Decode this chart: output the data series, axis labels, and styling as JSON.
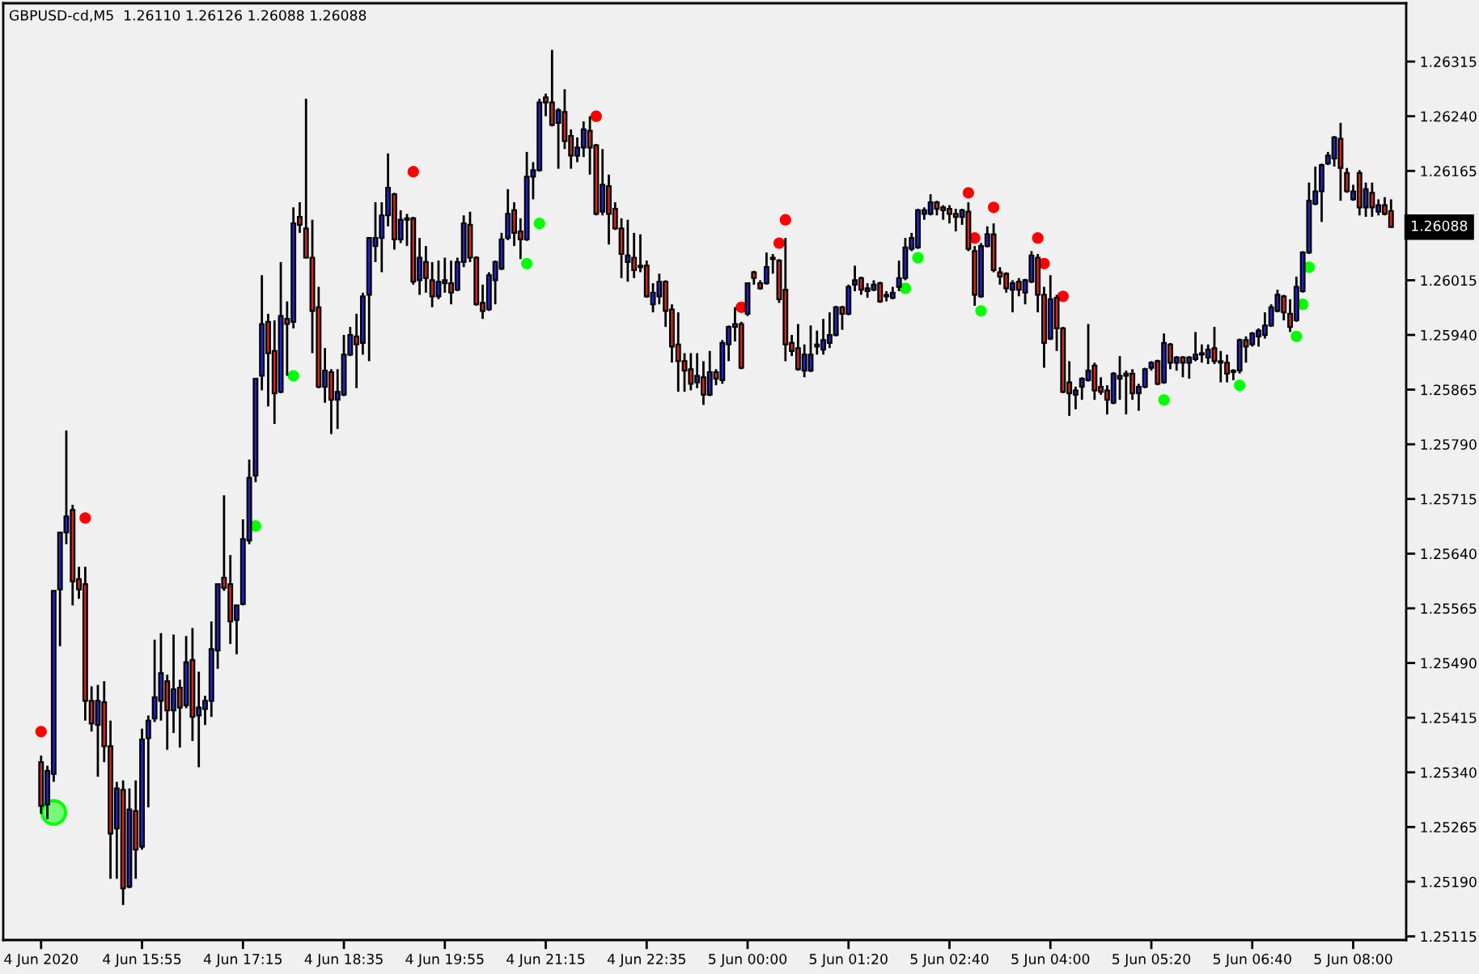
{
  "chart_data": {
    "type": "candlestick",
    "title": "GBPUSD-cd,M5  1.26110 1.26126 1.26088 1.26088",
    "categories": [
      "4 Jun 2020",
      null,
      null,
      null,
      null,
      null,
      null,
      null,
      null,
      null,
      null,
      null,
      null,
      null,
      null,
      null,
      "4 Jun 15:55",
      null,
      null,
      null,
      null,
      null,
      null,
      null,
      null,
      null,
      null,
      null,
      null,
      null,
      null,
      null,
      "4 Jun 17:15",
      null,
      null,
      null,
      null,
      null,
      null,
      null,
      null,
      null,
      null,
      null,
      null,
      null,
      null,
      null,
      "4 Jun 18:35",
      null,
      null,
      null,
      null,
      null,
      null,
      null,
      null,
      null,
      null,
      null,
      null,
      null,
      null,
      null,
      "4 Jun 19:55",
      null,
      null,
      null,
      null,
      null,
      null,
      null,
      null,
      null,
      null,
      null,
      null,
      null,
      null,
      null,
      "4 Jun 21:15",
      null,
      null,
      null,
      null,
      null,
      null,
      null,
      null,
      null,
      null,
      null,
      null,
      null,
      null,
      null,
      "4 Jun 22:35",
      null,
      null,
      null,
      null,
      null,
      null,
      null,
      null,
      null,
      null,
      null,
      null,
      null,
      null,
      null,
      "5 Jun 00:00",
      null,
      null,
      null,
      null,
      null,
      null,
      null,
      null,
      null,
      null,
      null,
      null,
      null,
      null,
      null,
      "5 Jun 01:20",
      null,
      null,
      null,
      null,
      null,
      null,
      null,
      null,
      null,
      null,
      null,
      null,
      null,
      null,
      null,
      "5 Jun 02:40",
      null,
      null,
      null,
      null,
      null,
      null,
      null,
      null,
      null,
      null,
      null,
      null,
      null,
      null,
      null,
      "5 Jun 04:00",
      null,
      null,
      null,
      null,
      null,
      null,
      null,
      null,
      null,
      null,
      null,
      null,
      null,
      null,
      null,
      "5 Jun 05:20",
      null,
      null,
      null,
      null,
      null,
      null,
      null,
      null,
      null,
      null,
      null,
      null,
      null,
      null,
      null,
      "5 Jun 06:40",
      null,
      null,
      null,
      null,
      null,
      null,
      null,
      null,
      null,
      null,
      null,
      null,
      null,
      null,
      null,
      "5 Jun 08:00",
      null,
      null,
      null,
      null,
      null,
      null
    ],
    "ohlc": [
      [
        1.25354,
        1.25363,
        1.25283,
        1.25294
      ],
      [
        1.25296,
        1.25349,
        1.25276,
        1.25342
      ],
      [
        1.25338,
        1.25589,
        1.25327,
        1.25589
      ],
      [
        1.25591,
        1.25669,
        1.25513,
        1.25669
      ],
      [
        1.25669,
        1.25809,
        1.25653,
        1.25691
      ],
      [
        1.257,
        1.25707,
        1.25569,
        1.25602
      ],
      [
        1.25605,
        1.25622,
        1.25578,
        1.25591
      ],
      [
        1.25598,
        1.25622,
        1.25411,
        1.25438
      ],
      [
        1.25438,
        1.25458,
        1.25396,
        1.25407
      ],
      [
        1.25405,
        1.2546,
        1.25334,
        1.25438
      ],
      [
        1.25436,
        1.25465,
        1.25354,
        1.25376
      ],
      [
        1.25376,
        1.25411,
        1.25194,
        1.25256
      ],
      [
        1.25263,
        1.25327,
        1.25194,
        1.25318
      ],
      [
        1.25316,
        1.25329,
        1.25158,
        1.25181
      ],
      [
        1.25183,
        1.25318,
        1.25181,
        1.25289
      ],
      [
        1.25287,
        1.25329,
        1.25194,
        1.25234
      ],
      [
        1.25238,
        1.254,
        1.25234,
        1.25385
      ],
      [
        1.25387,
        1.25418,
        1.25292,
        1.25411
      ],
      [
        1.25414,
        1.25522,
        1.25409,
        1.25443
      ],
      [
        1.25438,
        1.25531,
        1.25411,
        1.25476
      ],
      [
        1.25465,
        1.25474,
        1.25371,
        1.25425
      ],
      [
        1.25425,
        1.25529,
        1.25394,
        1.25454
      ],
      [
        1.25456,
        1.25467,
        1.25374,
        1.25429
      ],
      [
        1.25432,
        1.25527,
        1.25428,
        1.25491
      ],
      [
        1.25494,
        1.25538,
        1.25383,
        1.25416
      ],
      [
        1.25418,
        1.25478,
        1.25347,
        1.25429
      ],
      [
        1.25427,
        1.25445,
        1.25405,
        1.25438
      ],
      [
        1.25438,
        1.25547,
        1.25416,
        1.25509
      ],
      [
        1.25507,
        1.25598,
        1.25482,
        1.25598
      ],
      [
        1.25607,
        1.2572,
        1.25589,
        1.25593
      ],
      [
        1.25598,
        1.25638,
        1.25516,
        1.25547
      ],
      [
        1.25549,
        1.25569,
        1.25502,
        1.25569
      ],
      [
        1.25571,
        1.25687,
        1.25569,
        1.2566
      ],
      [
        1.25658,
        1.25769,
        1.25653,
        1.25744
      ],
      [
        1.25747,
        1.2588,
        1.25738,
        1.2588
      ],
      [
        1.25884,
        1.26022,
        1.25864,
        1.25955
      ],
      [
        1.25958,
        1.25969,
        1.25842,
        1.25915
      ],
      [
        1.25918,
        1.2596,
        1.25818,
        1.2586
      ],
      [
        1.25862,
        1.2604,
        1.2586,
        1.25966
      ],
      [
        1.25962,
        1.25986,
        1.25884,
        1.25955
      ],
      [
        1.25958,
        1.26115,
        1.25949,
        1.26093
      ],
      [
        1.26102,
        1.26122,
        1.2608,
        1.26091
      ],
      [
        1.26086,
        1.26264,
        1.26045,
        1.26046
      ],
      [
        1.26046,
        1.26098,
        1.25915,
        1.25973
      ],
      [
        1.25978,
        1.26006,
        1.25867,
        1.25869
      ],
      [
        1.25869,
        1.25922,
        1.25847,
        1.25891
      ],
      [
        1.25889,
        1.25893,
        1.25804,
        1.25851
      ],
      [
        1.25851,
        1.25893,
        1.25811,
        1.25862
      ],
      [
        1.25858,
        1.2594,
        1.25856,
        1.25913
      ],
      [
        1.25913,
        1.25951,
        1.25911,
        1.2594
      ],
      [
        1.25938,
        1.25969,
        1.25867,
        1.25927
      ],
      [
        1.25929,
        1.25998,
        1.25913,
        1.25993
      ],
      [
        1.25995,
        1.26073,
        1.25904,
        1.26073
      ],
      [
        1.26062,
        1.26122,
        1.2604,
        1.26073
      ],
      [
        1.26073,
        1.26122,
        1.26026,
        1.26104
      ],
      [
        1.26104,
        1.26189,
        1.26089,
        1.26142
      ],
      [
        1.26133,
        1.26135,
        1.26057,
        1.26071
      ],
      [
        1.26071,
        1.26111,
        1.26066,
        1.26098
      ],
      [
        1.261,
        1.26106,
        1.26062,
        1.26098
      ],
      [
        1.261,
        1.26102,
        1.26009,
        1.26013
      ],
      [
        1.26015,
        1.26073,
        1.25995,
        1.26046
      ],
      [
        1.2604,
        1.26062,
        1.25998,
        1.26018
      ],
      [
        1.26015,
        1.2604,
        1.25978,
        1.25993
      ],
      [
        1.25993,
        1.26042,
        1.25989,
        1.26013
      ],
      [
        1.26011,
        1.26046,
        1.25998,
        1.26015
      ],
      [
        1.26011,
        1.26042,
        1.25982,
        1.25998
      ],
      [
        1.26002,
        1.26046,
        1.26,
        1.2604
      ],
      [
        1.2604,
        1.26104,
        1.26033,
        1.26093
      ],
      [
        1.26091,
        1.26109,
        1.2604,
        1.26046
      ],
      [
        1.26046,
        1.26048,
        1.2598,
        1.25982
      ],
      [
        1.25984,
        1.26009,
        1.25962,
        1.25973
      ],
      [
        1.25975,
        1.26026,
        1.25973,
        1.26022
      ],
      [
        1.26015,
        1.26042,
        1.25982,
        1.2604
      ],
      [
        1.26031,
        1.2608,
        1.26029,
        1.26071
      ],
      [
        1.26073,
        1.2614,
        1.2607,
        1.26106
      ],
      [
        1.26111,
        1.26122,
        1.26062,
        1.2608
      ],
      [
        1.26082,
        1.261,
        1.26044,
        1.26071
      ],
      [
        1.26071,
        1.26191,
        1.26069,
        1.26157
      ],
      [
        1.26157,
        1.26177,
        1.26126,
        1.26166
      ],
      [
        1.26166,
        1.26264,
        1.26164,
        1.26259
      ],
      [
        1.26266,
        1.26271,
        1.2624,
        1.26259
      ],
      [
        1.26259,
        1.26331,
        1.26226,
        1.26228
      ],
      [
        1.26231,
        1.26251,
        1.26168,
        1.26248
      ],
      [
        1.26246,
        1.26277,
        1.26195,
        1.26206
      ],
      [
        1.26213,
        1.26222,
        1.26168,
        1.26186
      ],
      [
        1.26186,
        1.26211,
        1.26177,
        1.26197
      ],
      [
        1.26197,
        1.26233,
        1.26184,
        1.26222
      ],
      [
        1.2622,
        1.2624,
        1.2616,
        1.26197
      ],
      [
        1.262,
        1.26202,
        1.26104,
        1.26106
      ],
      [
        1.26109,
        1.26195,
        1.26104,
        1.26146
      ],
      [
        1.26144,
        1.2616,
        1.26064,
        1.26106
      ],
      [
        1.26113,
        1.26122,
        1.26084,
        1.26086
      ],
      [
        1.26086,
        1.261,
        1.26018,
        1.26051
      ],
      [
        1.2604,
        1.26098,
        1.26013,
        1.26049
      ],
      [
        1.26046,
        1.2608,
        1.26018,
        1.26029
      ],
      [
        1.26035,
        1.26078,
        1.26026,
        1.26033
      ],
      [
        1.26035,
        1.26042,
        1.25991,
        1.25993
      ],
      [
        1.25982,
        1.26011,
        1.25971,
        1.25998
      ],
      [
        1.25993,
        1.26024,
        1.25982,
        1.26013
      ],
      [
        1.26013,
        1.26015,
        1.25951,
        1.25973
      ],
      [
        1.25975,
        1.25982,
        1.25902,
        1.25924
      ],
      [
        1.25927,
        1.25971,
        1.25862,
        1.25904
      ],
      [
        1.25904,
        1.25915,
        1.25862,
        1.25891
      ],
      [
        1.25893,
        1.25915,
        1.25864,
        1.25873
      ],
      [
        1.25875,
        1.25915,
        1.25867,
        1.25884
      ],
      [
        1.25882,
        1.25904,
        1.25844,
        1.25858
      ],
      [
        1.25858,
        1.25918,
        1.25856,
        1.25889
      ],
      [
        1.25889,
        1.25893,
        1.25871,
        1.2588
      ],
      [
        1.25878,
        1.25933,
        1.25873,
        1.25929
      ],
      [
        1.25927,
        1.25953,
        1.25904,
        1.25951
      ],
      [
        1.25955,
        1.25978,
        1.25931,
        1.25951
      ],
      [
        1.25955,
        1.25958,
        1.25893,
        1.25895
      ],
      [
        1.25969,
        1.26011,
        1.25966,
        1.26011
      ],
      [
        1.26026,
        1.26028,
        1.26009,
        1.26018
      ],
      [
        1.26011,
        1.26015,
        1.26002,
        1.26004
      ],
      [
        1.26011,
        1.26053,
        1.26009,
        1.26033
      ],
      [
        1.26044,
        1.26051,
        1.26024,
        1.26046
      ],
      [
        1.26042,
        1.26044,
        1.25984,
        1.25989
      ],
      [
        1.26002,
        1.26073,
        1.25904,
        1.25927
      ],
      [
        1.25929,
        1.2594,
        1.25911,
        1.25918
      ],
      [
        1.25922,
        1.25955,
        1.25891,
        1.25893
      ],
      [
        1.25891,
        1.25927,
        1.25882,
        1.25913
      ],
      [
        1.25891,
        1.25953,
        1.25889,
        1.25913
      ],
      [
        1.25924,
        1.25946,
        1.25913,
        1.25927
      ],
      [
        1.2592,
        1.25962,
        1.25913,
        1.25933
      ],
      [
        1.25929,
        1.25971,
        1.25922,
        1.2594
      ],
      [
        1.2594,
        1.2598,
        1.25938,
        1.25978
      ],
      [
        1.25978,
        1.2598,
        1.25947,
        1.25969
      ],
      [
        1.25969,
        1.26009,
        1.25967,
        1.26006
      ],
      [
        1.26009,
        1.26035,
        1.26,
        1.26015
      ],
      [
        1.26018,
        1.2602,
        1.25995,
        1.26002
      ],
      [
        1.26,
        1.26011,
        1.25991,
        1.26004
      ],
      [
        1.26002,
        1.26015,
        1.26,
        1.26009
      ],
      [
        1.26011,
        1.26013,
        1.25984,
        1.25986
      ],
      [
        1.25995,
        1.26,
        1.25986,
        1.25993
      ],
      [
        1.25991,
        1.26006,
        1.25989,
        1.25998
      ],
      [
        1.26006,
        1.26042,
        1.26,
        1.26018
      ],
      [
        1.26018,
        1.26073,
        1.26015,
        1.2606
      ],
      [
        1.26058,
        1.2608,
        1.26055,
        1.26073
      ],
      [
        1.2606,
        1.26113,
        1.26058,
        1.26111
      ],
      [
        1.26106,
        1.26115,
        1.26098,
        1.26111
      ],
      [
        1.26106,
        1.26133,
        1.26104,
        1.26122
      ],
      [
        1.26122,
        1.26124,
        1.26104,
        1.26113
      ],
      [
        1.26115,
        1.26118,
        1.26098,
        1.26111
      ],
      [
        1.26113,
        1.26118,
        1.26093,
        1.26106
      ],
      [
        1.26106,
        1.26113,
        1.26082,
        1.26102
      ],
      [
        1.26102,
        1.26113,
        1.26091,
        1.26111
      ],
      [
        1.26109,
        1.26122,
        1.26055,
        1.26058
      ],
      [
        1.26055,
        1.26062,
        1.2598,
        1.25995
      ],
      [
        1.25993,
        1.26066,
        1.25991,
        1.26062
      ],
      [
        1.26062,
        1.26089,
        1.2606,
        1.26078
      ],
      [
        1.26078,
        1.26093,
        1.26026,
        1.26029
      ],
      [
        1.26026,
        1.26033,
        1.26009,
        1.2602
      ],
      [
        1.26024,
        1.26026,
        1.25998,
        1.26004
      ],
      [
        1.26002,
        1.26015,
        1.25971,
        1.26011
      ],
      [
        1.26013,
        1.26018,
        1.25993,
        1.26002
      ],
      [
        1.25998,
        1.26017,
        1.25982,
        1.26015
      ],
      [
        1.26013,
        1.26055,
        1.26011,
        1.26049
      ],
      [
        1.26046,
        1.26051,
        1.25971,
        1.25995
      ],
      [
        1.25995,
        1.26006,
        1.25895,
        1.25929
      ],
      [
        1.25935,
        1.26022,
        1.25933,
        1.25989
      ],
      [
        1.25991,
        1.25995,
        1.25918,
        1.25949
      ],
      [
        1.25949,
        1.25951,
        1.2586,
        1.25862
      ],
      [
        1.25875,
        1.25904,
        1.25829,
        1.2586
      ],
      [
        1.25858,
        1.25869,
        1.25838,
        1.25864
      ],
      [
        1.25869,
        1.25882,
        1.25851,
        1.2588
      ],
      [
        1.25878,
        1.25955,
        1.25876,
        1.25891
      ],
      [
        1.25898,
        1.25902,
        1.25851,
        1.25864
      ],
      [
        1.25869,
        1.25882,
        1.25858,
        1.25862
      ],
      [
        1.25864,
        1.25871,
        1.25831,
        1.25851
      ],
      [
        1.25847,
        1.25889,
        1.25845,
        1.25887
      ],
      [
        1.2588,
        1.25911,
        1.25851,
        1.25884
      ],
      [
        1.25887,
        1.25891,
        1.25831,
        1.25884
      ],
      [
        1.25887,
        1.25893,
        1.25851,
        1.2586
      ],
      [
        1.2586,
        1.25873,
        1.25836,
        1.25869
      ],
      [
        1.25869,
        1.25895,
        1.25867,
        1.25893
      ],
      [
        1.25895,
        1.25904,
        1.25891,
        1.25902
      ],
      [
        1.25904,
        1.25906,
        1.25871,
        1.25873
      ],
      [
        1.25875,
        1.25942,
        1.25873,
        1.25929
      ],
      [
        1.25927,
        1.25929,
        1.25893,
        1.25902
      ],
      [
        1.25902,
        1.25911,
        1.25891,
        1.25909
      ],
      [
        1.25909,
        1.25911,
        1.25882,
        1.25902
      ],
      [
        1.25902,
        1.25911,
        1.2588,
        1.25909
      ],
      [
        1.25907,
        1.25944,
        1.25904,
        1.25913
      ],
      [
        1.25913,
        1.25927,
        1.25902,
        1.25915
      ],
      [
        1.25909,
        1.25927,
        1.259,
        1.2592
      ],
      [
        1.25922,
        1.25951,
        1.259,
        1.25904
      ],
      [
        1.25904,
        1.25918,
        1.25875,
        1.25902
      ],
      [
        1.25902,
        1.25913,
        1.25875,
        1.25887
      ],
      [
        1.25891,
        1.25893,
        1.25878,
        1.25889
      ],
      [
        1.25891,
        1.25935,
        1.25887,
        1.25933
      ],
      [
        1.25933,
        1.25938,
        1.25902,
        1.25924
      ],
      [
        1.25927,
        1.25944,
        1.25924,
        1.25942
      ],
      [
        1.25938,
        1.25949,
        1.25924,
        1.25946
      ],
      [
        1.2594,
        1.25971,
        1.25935,
        1.25953
      ],
      [
        1.25953,
        1.25982,
        1.25951,
        1.25978
      ],
      [
        1.25973,
        1.26002,
        1.25971,
        1.25995
      ],
      [
        1.25993,
        1.25995,
        1.2596,
        1.25971
      ],
      [
        1.25969,
        1.25989,
        1.25944,
        1.25951
      ],
      [
        1.2596,
        1.2602,
        1.25958,
        1.26006
      ],
      [
        1.26,
        1.26055,
        1.25998,
        1.26053
      ],
      [
        1.26053,
        1.26149,
        1.26051,
        1.26124
      ],
      [
        1.2612,
        1.26171,
        1.26118,
        1.26137
      ],
      [
        1.26137,
        1.26175,
        1.26095,
        1.26173
      ],
      [
        1.26175,
        1.26191,
        1.26173,
        1.26186
      ],
      [
        1.26182,
        1.26213,
        1.26171,
        1.26211
      ],
      [
        1.26209,
        1.26231,
        1.26124,
        1.26169
      ],
      [
        1.26162,
        1.26169,
        1.26135,
        1.26137
      ],
      [
        1.26126,
        1.26146,
        1.26124,
        1.26137
      ],
      [
        1.26162,
        1.26166,
        1.26104,
        1.26115
      ],
      [
        1.26115,
        1.26149,
        1.26102,
        1.2614
      ],
      [
        1.26135,
        1.26149,
        1.26102,
        1.26115
      ],
      [
        1.26109,
        1.26126,
        1.26104,
        1.26118
      ],
      [
        1.26118,
        1.26129,
        1.26104,
        1.26106
      ],
      [
        1.2611,
        1.26126,
        1.26088,
        1.26088
      ]
    ],
    "colors": [
      "#d0281e",
      "#2323c8",
      "#2323c8",
      "#2323c8",
      "#2323c8",
      "#d0281e",
      "#d0281e",
      "#d0281e",
      "#d0281e",
      "#2323c8",
      "#d0281e",
      "#d0281e",
      "#2323c8",
      "#d0281e",
      "#2323c8",
      "#d0281e",
      "#2323c8",
      "#2323c8",
      "#2323c8",
      "#2323c8",
      "#d0281e",
      "#2323c8",
      "#d0281e",
      "#2323c8",
      "#d0281e",
      "#2323c8",
      "#2323c8",
      "#2323c8",
      "#2323c8",
      "#d0281e",
      "#d0281e",
      "#2323c8",
      "#2323c8",
      "#2323c8",
      "#2323c8",
      "#2323c8",
      "#d0281e",
      "#d0281e",
      "#2323c8",
      "#d0281e",
      "#2323c8",
      "#d0281e",
      "#d0281e",
      "#d0281e",
      "#d0281e",
      "#2323c8",
      "#d0281e",
      "#2323c8",
      "#2323c8",
      "#2323c8",
      "#d0281e",
      "#2323c8",
      "#2323c8",
      "#2323c8",
      "#2323c8",
      "#2323c8",
      "#d0281e",
      "#2323c8",
      "#d0281e",
      "#d0281e",
      "#2323c8",
      "#d0281e",
      "#d0281e",
      "#2323c8",
      "#2323c8",
      "#d0281e",
      "#2323c8",
      "#2323c8",
      "#d0281e",
      "#d0281e",
      "#d0281e",
      "#2323c8",
      "#2323c8",
      "#2323c8",
      "#2323c8",
      "#d0281e",
      "#d0281e",
      "#2323c8",
      "#2323c8",
      "#2323c8",
      "#d0281e",
      "#d0281e",
      "#2323c8",
      "#d0281e",
      "#d0281e",
      "#2323c8",
      "#2323c8",
      "#d0281e",
      "#d0281e",
      "#2323c8",
      "#d0281e",
      "#d0281e",
      "#d0281e",
      "#2323c8",
      "#d0281e",
      "#d0281e",
      "#d0281e",
      "#2323c8",
      "#2323c8",
      "#d0281e",
      "#d0281e",
      "#d0281e",
      "#d0281e",
      "#d0281e",
      "#2323c8",
      "#d0281e",
      "#2323c8",
      "#d0281e",
      "#2323c8",
      "#2323c8",
      "#d0281e",
      "#d0281e",
      "#2323c8",
      "#d0281e",
      "#d0281e",
      "#2323c8",
      "#2323c8",
      "#d0281e",
      "#d0281e",
      "#d0281e",
      "#d0281e",
      "#2323c8",
      "#2323c8",
      "#2323c8",
      "#2323c8",
      "#2323c8",
      "#2323c8",
      "#d0281e",
      "#2323c8",
      "#2323c8",
      "#d0281e",
      "#2323c8",
      "#2323c8",
      "#d0281e",
      "#d0281e",
      "#2323c8",
      "#2323c8",
      "#2323c8",
      "#2323c8",
      "#2323c8",
      "#2323c8",
      "#2323c8",
      "#d0281e",
      "#d0281e",
      "#d0281e",
      "#d0281e",
      "#2323c8",
      "#d0281e",
      "#d0281e",
      "#2323c8",
      "#2323c8",
      "#d0281e",
      "#d0281e",
      "#d0281e",
      "#2323c8",
      "#d0281e",
      "#2323c8",
      "#2323c8",
      "#d0281e",
      "#d0281e",
      "#2323c8",
      "#d0281e",
      "#d0281e",
      "#d0281e",
      "#2323c8",
      "#2323c8",
      "#2323c8",
      "#d0281e",
      "#d0281e",
      "#d0281e",
      "#2323c8",
      "#2323c8",
      "#d0281e",
      "#d0281e",
      "#2323c8",
      "#2323c8",
      "#2323c8",
      "#d0281e",
      "#2323c8",
      "#d0281e",
      "#2323c8",
      "#d0281e",
      "#2323c8",
      "#2323c8",
      "#2323c8",
      "#2323c8",
      "#d0281e",
      "#d0281e",
      "#d0281e",
      "#d0281e",
      "#2323c8",
      "#d0281e",
      "#2323c8",
      "#2323c8",
      "#2323c8",
      "#2323c8",
      "#2323c8",
      "#d0281e",
      "#d0281e",
      "#2323c8",
      "#2323c8",
      "#2323c8",
      "#2323c8",
      "#2323c8",
      "#2323c8",
      "#2323c8",
      "#d0281e",
      "#d0281e",
      "#2323c8",
      "#d0281e",
      "#2323c8",
      "#d0281e",
      "#2323c8",
      "#d0281e",
      "#d0281e"
    ],
    "series": [
      {
        "type": "scatter",
        "color": "#ff0000",
        "marker": "circle",
        "values": [
          1.25396,
          null,
          null,
          null,
          null,
          null,
          null,
          1.25689,
          null,
          null,
          null,
          null,
          null,
          null,
          null,
          null,
          null,
          null,
          null,
          null,
          null,
          null,
          null,
          null,
          null,
          null,
          null,
          null,
          null,
          null,
          null,
          null,
          null,
          null,
          null,
          null,
          null,
          null,
          null,
          null,
          null,
          null,
          null,
          null,
          null,
          null,
          null,
          null,
          null,
          null,
          null,
          null,
          null,
          null,
          null,
          null,
          null,
          null,
          null,
          1.26164,
          null,
          null,
          null,
          null,
          null,
          null,
          null,
          null,
          null,
          null,
          null,
          null,
          null,
          null,
          null,
          null,
          null,
          null,
          null,
          null,
          null,
          null,
          null,
          null,
          null,
          null,
          null,
          null,
          1.2624,
          null,
          null,
          null,
          null,
          null,
          null,
          null,
          null,
          null,
          null,
          null,
          null,
          null,
          null,
          null,
          null,
          null,
          null,
          null,
          null,
          null,
          null,
          1.25978,
          null,
          null,
          null,
          null,
          null,
          1.26066,
          1.26098,
          null,
          null,
          null,
          null,
          null,
          null,
          null,
          null,
          null,
          null,
          null,
          null,
          null,
          null,
          null,
          null,
          null,
          null,
          null,
          null,
          null,
          null,
          null,
          null,
          null,
          null,
          null,
          null,
          1.26135,
          1.26073,
          null,
          null,
          1.26115,
          null,
          null,
          null,
          null,
          null,
          null,
          1.26073,
          1.26038,
          null,
          null,
          1.25993,
          null,
          null,
          null,
          null,
          null,
          null,
          null,
          null,
          null,
          null,
          null,
          null,
          null,
          null,
          null,
          null,
          null,
          null,
          null,
          null,
          null,
          null,
          null,
          null,
          null,
          null,
          null,
          null,
          null,
          null,
          null,
          null,
          null,
          null,
          null,
          null,
          null,
          null,
          null,
          null,
          null,
          null,
          null,
          null,
          null,
          null,
          null,
          null,
          null,
          null,
          null,
          null
        ]
      },
      {
        "type": "scatter",
        "color": "#00ff00",
        "marker": "circle",
        "values": [
          null,
          null,
          null,
          null,
          null,
          null,
          null,
          null,
          null,
          null,
          null,
          null,
          null,
          null,
          null,
          null,
          null,
          null,
          null,
          null,
          null,
          null,
          null,
          null,
          null,
          null,
          null,
          null,
          null,
          null,
          null,
          null,
          null,
          null,
          1.25678,
          null,
          null,
          null,
          null,
          null,
          1.25884,
          null,
          null,
          null,
          null,
          null,
          null,
          null,
          null,
          null,
          null,
          null,
          null,
          null,
          null,
          null,
          null,
          null,
          null,
          null,
          null,
          null,
          null,
          null,
          null,
          null,
          null,
          null,
          null,
          null,
          null,
          null,
          null,
          null,
          null,
          null,
          null,
          1.26038,
          null,
          1.26093,
          null,
          null,
          null,
          null,
          null,
          null,
          null,
          null,
          null,
          null,
          null,
          null,
          null,
          null,
          null,
          null,
          null,
          null,
          null,
          null,
          null,
          null,
          null,
          null,
          null,
          null,
          null,
          null,
          null,
          null,
          null,
          null,
          null,
          null,
          null,
          null,
          null,
          null,
          null,
          null,
          null,
          null,
          null,
          null,
          null,
          null,
          null,
          null,
          null,
          null,
          null,
          null,
          null,
          null,
          null,
          null,
          null,
          1.26004,
          null,
          1.26046,
          null,
          null,
          null,
          null,
          null,
          null,
          null,
          null,
          null,
          1.25973,
          null,
          null,
          null,
          null,
          null,
          null,
          null,
          null,
          null,
          null,
          null,
          null,
          null,
          null,
          null,
          null,
          null,
          null,
          null,
          null,
          null,
          null,
          null,
          null,
          null,
          null,
          null,
          null,
          1.25851,
          null,
          null,
          null,
          null,
          null,
          null,
          null,
          null,
          null,
          null,
          null,
          1.25871,
          null,
          null,
          null,
          null,
          null,
          null,
          null,
          null,
          1.25938,
          1.25982,
          1.26033,
          null,
          null,
          null,
          null,
          null,
          null,
          null,
          null,
          null,
          null,
          null,
          null,
          null
        ]
      },
      {
        "type": "bubble",
        "color": "#00ff00",
        "values": [
          null,
          null,
          1.25285,
          null,
          null,
          null,
          null,
          null,
          null,
          null,
          null,
          null,
          null,
          null,
          null,
          null,
          null,
          null,
          null,
          null,
          null,
          null,
          null,
          null,
          null,
          null,
          null,
          null,
          null,
          null,
          null,
          null,
          null,
          null,
          null,
          null,
          null,
          null,
          null,
          null,
          null,
          null,
          null,
          null,
          null,
          null,
          null,
          null,
          null,
          null,
          null,
          null,
          null,
          null,
          null,
          null,
          null,
          null,
          null,
          null,
          null,
          null,
          null,
          null,
          null,
          null,
          null,
          null,
          null,
          null,
          null,
          null,
          null,
          null,
          null,
          null,
          null,
          null,
          null,
          null,
          null,
          null,
          null,
          null,
          null,
          null,
          null,
          null,
          null,
          null,
          null,
          null,
          null,
          null,
          null,
          null,
          null,
          null,
          null,
          null,
          null,
          null,
          null,
          null,
          null,
          null,
          null,
          null,
          null,
          null,
          null,
          null,
          null,
          null,
          null,
          null,
          null,
          null,
          null,
          null,
          null,
          null,
          null,
          null,
          null,
          null,
          null,
          null,
          null,
          null,
          null,
          null,
          null,
          null,
          null,
          null,
          null,
          null,
          null,
          null,
          null,
          null,
          null,
          null,
          null,
          null,
          null,
          null,
          null,
          null,
          null,
          null,
          null,
          null,
          null,
          null,
          null,
          null,
          null,
          null,
          null,
          null,
          null,
          null,
          null,
          null,
          null,
          null,
          null,
          null,
          null,
          null,
          null,
          null,
          null,
          null,
          null,
          null,
          null,
          null,
          null,
          null,
          null,
          null,
          null,
          null,
          null,
          null,
          null,
          null,
          null,
          null,
          null,
          null,
          null,
          null,
          null,
          null,
          null,
          null,
          null,
          null,
          null,
          null,
          null,
          null,
          null,
          null,
          null,
          null,
          null,
          null,
          null,
          null,
          null
        ],
        "sizes": [
          null,
          null,
          1,
          null,
          null,
          null,
          null,
          null,
          null,
          null,
          null,
          null,
          null,
          null,
          null,
          null,
          null,
          null,
          null,
          null,
          null,
          null,
          null,
          null,
          null,
          null,
          null,
          null,
          null,
          null,
          null,
          null,
          null,
          null,
          null,
          null,
          null,
          null,
          null,
          null,
          null,
          null,
          null,
          null,
          null,
          null,
          null,
          null,
          null,
          null,
          null,
          null,
          null,
          null,
          null,
          null,
          null,
          null,
          null,
          null,
          null,
          null,
          null,
          null,
          null,
          null,
          null,
          null,
          null,
          null,
          null,
          null,
          null,
          null,
          null,
          null,
          null,
          null,
          null,
          null,
          null,
          null,
          null,
          null,
          null,
          null,
          null,
          null,
          null,
          null,
          null,
          null,
          null,
          null,
          null,
          null,
          null,
          null,
          null,
          null,
          null,
          null,
          null,
          null,
          null,
          null,
          null,
          null,
          null,
          null,
          null,
          null,
          null,
          null,
          null,
          null,
          null,
          null,
          null,
          null,
          null,
          null,
          null,
          null,
          null,
          null,
          null,
          null,
          null,
          null,
          null,
          null,
          null,
          null,
          null,
          null,
          null,
          null,
          null,
          null,
          null,
          null,
          null,
          null,
          null,
          null,
          null,
          null,
          null,
          null,
          null,
          null,
          null,
          null,
          null,
          null,
          null,
          null,
          null,
          null,
          null,
          null,
          null,
          null,
          null,
          null,
          null,
          null,
          null,
          null,
          null,
          null,
          null,
          null,
          null,
          null,
          null,
          null,
          null,
          null,
          null,
          null,
          null,
          null,
          null,
          null,
          null,
          null,
          null,
          null,
          null,
          null,
          null,
          null,
          null,
          null,
          null,
          null,
          null,
          null,
          null,
          null,
          null,
          null,
          null,
          null,
          null,
          null,
          null,
          null,
          null,
          null,
          null,
          null,
          null
        ]
      }
    ],
    "ylim": [
      1.2511,
      1.26395
    ],
    "yticks": [
      1.26315,
      {
        "value": 1.2624,
        "label": "1.26240"
      },
      1.26165,
      1.26015,
      {
        "value": 1.2594,
        "label": "1.25940"
      },
      1.25865,
      {
        "value": 1.2579,
        "label": "1.25790"
      },
      1.25715,
      {
        "value": 1.2564,
        "label": "1.25640"
      },
      1.25565,
      {
        "value": 1.2549,
        "label": "1.25490"
      },
      1.25415,
      {
        "value": 1.2534,
        "label": "1.25340"
      },
      1.25265,
      {
        "value": 1.2519,
        "label": "1.25190"
      },
      1.25115
    ],
    "annotations": [
      "1.26088"
    ]
  }
}
